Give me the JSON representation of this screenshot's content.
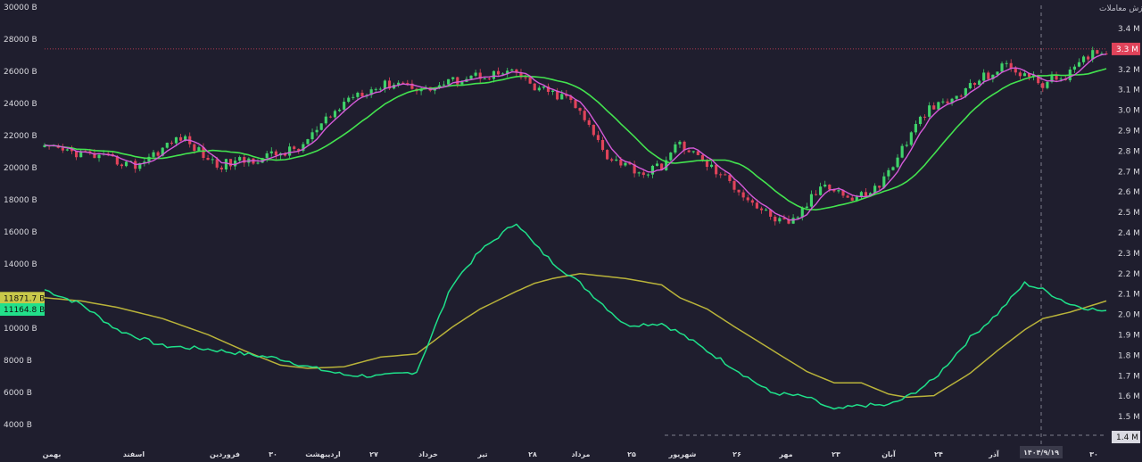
{
  "chart_data": {
    "type": "candlestick+line",
    "title": "معاملات خرد سهام، حق تقدم و صندوق های سهامی ارزش معاملات",
    "x_labels": [
      "بهمن",
      "اسفند",
      "فروردین",
      "۳۰",
      "اردیبهشت",
      "۲۷",
      "خرداد",
      "تیر",
      "۲۸",
      "مرداد",
      "۲۵",
      "شهریور",
      "۲۶",
      "مهر",
      "۲۳",
      "آبان",
      "۲۴",
      "آذر",
      "۳۰"
    ],
    "crosshair_date": "۱۴۰۴/۹/۱۹",
    "left_axis": {
      "unit": "B",
      "ticks": [
        30000,
        28000,
        26000,
        24000,
        22000,
        20000,
        18000,
        16000,
        14000,
        12000,
        10000,
        8000,
        6000,
        4000
      ],
      "range": [
        3100,
        30200
      ]
    },
    "right_axis": {
      "unit": "M",
      "ticks": [
        3.4,
        3.3,
        3.2,
        3.1,
        3.0,
        2.9,
        2.8,
        2.7,
        2.6,
        2.5,
        2.4,
        2.3,
        2.2,
        2.1,
        2.0,
        1.9,
        1.8,
        1.7,
        1.6,
        1.5,
        1.4
      ],
      "range": [
        1.36,
        3.41
      ]
    },
    "left_axis_tags": [
      {
        "label": "11871.7 B",
        "value": 11871.7,
        "color": "#c8c84a"
      },
      {
        "label": "11164.8 B",
        "value": 11164.8,
        "color": "#22e08a"
      }
    ],
    "right_axis_tags": [
      {
        "label": "3.3 M",
        "value": 3.3,
        "color": "#e0435a"
      },
      {
        "label": "1.4 M",
        "value": 1.4,
        "color": "#cfcfd8"
      }
    ],
    "value_lines": {
      "anchors": [
        0,
        8,
        16,
        26,
        36,
        44,
        52,
        58,
        66,
        74,
        82,
        90,
        96,
        104,
        108,
        112,
        118,
        128,
        136,
        140,
        146,
        152,
        160,
        168,
        174,
        180,
        186,
        190,
        196,
        204,
        210,
        216,
        220,
        226,
        234
      ],
      "green_values": [
        12400,
        11500,
        9900,
        8900,
        8700,
        8400,
        8100,
        7600,
        7100,
        7000,
        7300,
        12800,
        14800,
        16600,
        15200,
        14100,
        12800,
        10200,
        10300,
        9700,
        8600,
        7500,
        6000,
        5700,
        4900,
        5200,
        5200,
        5700,
        6800,
        9400,
        10900,
        12800,
        12400,
        11500,
        11000
      ],
      "yellow_values": [
        11900,
        11700,
        11300,
        10600,
        9600,
        8600,
        7700,
        7500,
        7600,
        8200,
        8400,
        10100,
        11200,
        12300,
        12800,
        13100,
        13400,
        13100,
        12700,
        11900,
        11200,
        10100,
        8700,
        7300,
        6600,
        6600,
        5900,
        5700,
        5800,
        7200,
        8600,
        9900,
        10600,
        11000,
        11700
      ]
    },
    "price_candles": {
      "anchors": [
        0,
        8,
        20,
        30,
        38,
        46,
        56,
        68,
        78,
        84,
        94,
        104,
        108,
        116,
        124,
        132,
        136,
        140,
        152,
        158,
        164,
        172,
        178,
        184,
        194,
        200,
        206,
        212,
        220,
        226,
        232,
        234
      ],
      "close_values": [
        2.81,
        2.79,
        2.73,
        2.87,
        2.73,
        2.76,
        2.81,
        3.08,
        3.14,
        3.1,
        3.17,
        3.18,
        3.11,
        3.05,
        2.78,
        2.69,
        2.73,
        2.84,
        2.63,
        2.51,
        2.43,
        2.65,
        2.56,
        2.63,
        2.99,
        3.05,
        3.15,
        3.22,
        3.13,
        3.18,
        3.3,
        3.28
      ],
      "ma_fast": "pink",
      "ma_slow": "green"
    },
    "grid": false,
    "legend": "none"
  }
}
